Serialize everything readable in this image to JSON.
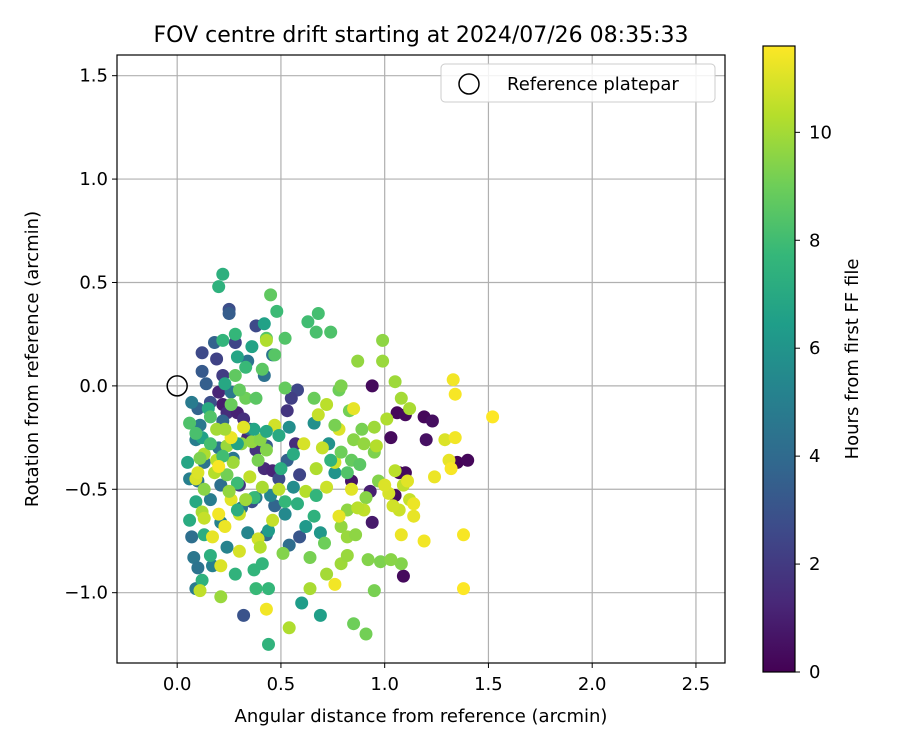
{
  "chart_data": {
    "type": "scatter",
    "title": "FOV centre drift starting at 2024/07/26 08:35:33",
    "xlabel": "Angular distance from reference (arcmin)",
    "ylabel": "Rotation from reference (arcmin)",
    "xlim": [
      -0.29,
      2.64
    ],
    "ylim": [
      -1.34,
      1.6
    ],
    "x_ticks": [
      "0.0",
      "0.5",
      "1.0",
      "1.5",
      "2.0",
      "2.5"
    ],
    "x_tick_values": [
      0.0,
      0.5,
      1.0,
      1.5,
      2.0,
      2.5
    ],
    "y_ticks": [
      "−1.0",
      "−0.5",
      "0.0",
      "0.5",
      "1.0",
      "1.5"
    ],
    "y_tick_values": [
      -1.0,
      -0.5,
      0.0,
      0.5,
      1.0,
      1.5
    ],
    "grid": true,
    "legend": {
      "placement": "top-right",
      "label": "Reference platepar"
    },
    "reference_point": {
      "x": 0.0,
      "y": 0.0
    },
    "colorbar": {
      "label": "Hours from first FF file",
      "min": 0,
      "max": 11.6,
      "ticks": [
        "0",
        "2",
        "4",
        "6",
        "8",
        "10"
      ],
      "tick_values": [
        0,
        2,
        4,
        6,
        8,
        10
      ],
      "colormap": "viridis",
      "colors": [
        "#440154",
        "#482878",
        "#3e4989",
        "#31688e",
        "#26828e",
        "#1f9e89",
        "#35b779",
        "#6ece58",
        "#b5de2b",
        "#fde725"
      ]
    },
    "points": [
      [
        0.94,
        0.0,
        0.3
      ],
      [
        1.06,
        -0.13,
        0.2
      ],
      [
        1.1,
        -0.14,
        0.3
      ],
      [
        1.19,
        -0.15,
        0.2
      ],
      [
        1.23,
        -0.17,
        0.4
      ],
      [
        1.2,
        -0.26,
        0.5
      ],
      [
        1.07,
        -0.42,
        0.2
      ],
      [
        1.1,
        -0.42,
        0.3
      ],
      [
        1.35,
        -0.37,
        0.1
      ],
      [
        1.4,
        -0.36,
        0.2
      ],
      [
        1.03,
        -0.25,
        0.3
      ],
      [
        1.05,
        -0.53,
        0.4
      ],
      [
        1.09,
        -0.92,
        0.3
      ],
      [
        0.84,
        -0.46,
        0.6
      ],
      [
        0.94,
        -0.66,
        0.8
      ],
      [
        0.93,
        -0.51,
        1.0
      ],
      [
        0.2,
        -0.03,
        1.2
      ],
      [
        0.22,
        -0.09,
        0.9
      ],
      [
        0.24,
        -0.13,
        1.5
      ],
      [
        0.29,
        -0.13,
        1.1
      ],
      [
        0.32,
        -0.16,
        1.6
      ],
      [
        0.34,
        -0.25,
        1.3
      ],
      [
        0.38,
        -0.31,
        1.7
      ],
      [
        0.42,
        -0.4,
        1.4
      ],
      [
        0.46,
        -0.41,
        1.2
      ],
      [
        0.3,
        -0.48,
        1.9
      ],
      [
        0.53,
        -0.12,
        1.8
      ],
      [
        0.57,
        -0.28,
        1.5
      ],
      [
        0.22,
        0.05,
        2.1
      ],
      [
        0.19,
        0.13,
        2.3
      ],
      [
        0.12,
        0.16,
        2.6
      ],
      [
        0.28,
        0.21,
        2.4
      ],
      [
        0.25,
        0.37,
        2.8
      ],
      [
        0.38,
        0.29,
        2.6
      ],
      [
        0.58,
        -0.02,
        2.5
      ],
      [
        0.55,
        -0.06,
        2.2
      ],
      [
        0.16,
        -0.08,
        2.8
      ],
      [
        0.49,
        -0.45,
        2.7
      ],
      [
        0.59,
        -0.43,
        2.4
      ],
      [
        0.36,
        -0.56,
        2.9
      ],
      [
        0.32,
        -1.11,
        3.0
      ],
      [
        0.59,
        -0.73,
        3.1
      ],
      [
        0.12,
        0.07,
        3.3
      ],
      [
        0.25,
        0.35,
        3.4
      ],
      [
        0.18,
        0.21,
        3.6
      ],
      [
        0.14,
        0.01,
        3.5
      ],
      [
        0.1,
        -0.11,
        3.7
      ],
      [
        0.22,
        -0.17,
        3.8
      ],
      [
        0.35,
        -0.21,
        3.9
      ],
      [
        0.43,
        -0.29,
        3.4
      ],
      [
        0.53,
        -0.36,
        3.6
      ],
      [
        0.47,
        -0.58,
        3.8
      ],
      [
        0.43,
        -0.72,
        4.0
      ],
      [
        0.54,
        -0.77,
        4.1
      ],
      [
        0.21,
        -0.48,
        4.2
      ],
      [
        0.42,
        0.05,
        4.3
      ],
      [
        0.34,
        0.12,
        4.4
      ],
      [
        0.46,
        0.15,
        4.5
      ],
      [
        0.26,
        -0.03,
        4.6
      ],
      [
        0.11,
        -0.19,
        4.7
      ],
      [
        0.07,
        -0.08,
        4.8
      ],
      [
        0.09,
        -0.26,
        4.9
      ],
      [
        0.06,
        -0.45,
        5.0
      ],
      [
        0.1,
        -0.46,
        4.3
      ],
      [
        0.13,
        -0.37,
        4.4
      ],
      [
        0.2,
        -0.3,
        4.5
      ],
      [
        0.27,
        -0.35,
        4.6
      ],
      [
        0.31,
        -0.59,
        4.7
      ],
      [
        0.38,
        -0.54,
        4.8
      ],
      [
        0.16,
        -0.55,
        4.9
      ],
      [
        0.07,
        -0.73,
        4.2
      ],
      [
        0.08,
        -0.83,
        4.6
      ],
      [
        0.1,
        -0.88,
        4.4
      ],
      [
        0.09,
        -0.98,
        4.8
      ],
      [
        0.17,
        -0.87,
        5.0
      ],
      [
        0.21,
        -0.66,
        5.1
      ],
      [
        0.24,
        -0.78,
        5.2
      ],
      [
        0.34,
        -0.71,
        5.3
      ],
      [
        0.45,
        -0.53,
        5.4
      ],
      [
        0.52,
        -0.62,
        5.5
      ],
      [
        0.56,
        -0.49,
        5.6
      ],
      [
        0.54,
        -0.2,
        5.7
      ],
      [
        0.66,
        -0.18,
        5.8
      ],
      [
        0.73,
        -0.28,
        5.9
      ],
      [
        0.76,
        -0.42,
        6.0
      ],
      [
        0.69,
        -0.71,
        6.1
      ],
      [
        0.62,
        -0.68,
        6.2
      ],
      [
        0.44,
        -0.7,
        6.3
      ],
      [
        0.6,
        -1.05,
        6.4
      ],
      [
        0.69,
        -1.11,
        6.5
      ],
      [
        0.42,
        0.3,
        6.6
      ],
      [
        0.36,
        0.19,
        6.7
      ],
      [
        0.29,
        0.14,
        6.8
      ],
      [
        0.23,
        0.01,
        6.9
      ],
      [
        0.15,
        -0.11,
        7.0
      ],
      [
        0.12,
        -0.25,
        6.6
      ],
      [
        0.05,
        -0.37,
        6.8
      ],
      [
        0.09,
        -0.56,
        7.0
      ],
      [
        0.06,
        -0.65,
        7.1
      ],
      [
        0.13,
        -0.72,
        7.2
      ],
      [
        0.16,
        -0.82,
        7.3
      ],
      [
        0.12,
        -0.94,
        7.4
      ],
      [
        0.28,
        -0.91,
        7.5
      ],
      [
        0.37,
        -0.89,
        7.6
      ],
      [
        0.44,
        -0.98,
        7.7
      ],
      [
        0.44,
        -1.25,
        7.5
      ],
      [
        0.22,
        0.54,
        7.3
      ],
      [
        0.2,
        0.48,
        7.4
      ],
      [
        0.22,
        0.22,
        7.6
      ],
      [
        0.28,
        0.25,
        7.7
      ],
      [
        0.33,
        0.09,
        7.8
      ],
      [
        0.48,
        0.36,
        7.9
      ],
      [
        0.63,
        0.31,
        8.0
      ],
      [
        0.68,
        0.35,
        8.1
      ],
      [
        0.67,
        0.26,
        8.2
      ],
      [
        0.74,
        0.26,
        8.3
      ],
      [
        0.52,
        0.23,
        8.4
      ],
      [
        0.47,
        0.15,
        8.5
      ],
      [
        0.41,
        0.08,
        8.6
      ],
      [
        0.28,
        0.05,
        8.7
      ],
      [
        0.52,
        -0.01,
        8.8
      ],
      [
        0.66,
        -0.06,
        8.9
      ],
      [
        0.78,
        -0.02,
        9.0
      ],
      [
        0.83,
        -0.12,
        9.1
      ],
      [
        0.89,
        -0.21,
        9.2
      ],
      [
        0.95,
        -0.32,
        9.3
      ],
      [
        0.97,
        -0.46,
        9.4
      ],
      [
        0.91,
        -0.54,
        9.5
      ],
      [
        0.82,
        -0.6,
        9.6
      ],
      [
        0.79,
        -0.68,
        9.7
      ],
      [
        0.82,
        -0.73,
        9.8
      ],
      [
        0.79,
        -0.86,
        9.9
      ],
      [
        0.72,
        -0.91,
        10.0
      ],
      [
        0.64,
        -0.98,
        10.1
      ],
      [
        0.54,
        -1.17,
        10.2
      ],
      [
        0.85,
        -1.15,
        9.0
      ],
      [
        0.91,
        -1.2,
        9.1
      ],
      [
        0.95,
        -0.99,
        9.2
      ],
      [
        0.98,
        -0.85,
        9.3
      ],
      [
        1.08,
        -0.86,
        9.4
      ],
      [
        1.03,
        -0.84,
        9.5
      ],
      [
        0.99,
        0.22,
        9.6
      ],
      [
        0.87,
        0.12,
        9.7
      ],
      [
        0.99,
        0.12,
        9.8
      ],
      [
        1.05,
        0.02,
        9.9
      ],
      [
        1.08,
        -0.06,
        10.0
      ],
      [
        1.12,
        -0.11,
        10.1
      ],
      [
        1.01,
        -0.16,
        10.2
      ],
      [
        0.96,
        -0.29,
        10.3
      ],
      [
        1.05,
        -0.41,
        10.4
      ],
      [
        1.09,
        -0.48,
        10.5
      ],
      [
        1.12,
        -0.55,
        10.6
      ],
      [
        1.07,
        -0.6,
        10.7
      ],
      [
        1.04,
        -0.58,
        10.8
      ],
      [
        1.02,
        -0.52,
        10.9
      ],
      [
        1.0,
        -0.48,
        11.0
      ],
      [
        1.11,
        -0.46,
        11.1
      ],
      [
        1.14,
        -0.63,
        11.2
      ],
      [
        1.14,
        -0.57,
        11.3
      ],
      [
        1.33,
        0.03,
        11.4
      ],
      [
        1.34,
        -0.04,
        11.5
      ],
      [
        1.29,
        -0.26,
        11.0
      ],
      [
        1.31,
        -0.36,
        11.2
      ],
      [
        1.34,
        -0.25,
        11.4
      ],
      [
        1.32,
        -0.4,
        11.5
      ],
      [
        1.24,
        -0.44,
        11.3
      ],
      [
        1.52,
        -0.15,
        11.6
      ],
      [
        1.38,
        -0.72,
        11.5
      ],
      [
        1.38,
        -0.98,
        11.6
      ],
      [
        1.19,
        -0.75,
        11.4
      ],
      [
        1.08,
        -0.72,
        11.3
      ],
      [
        0.84,
        -0.5,
        11.1
      ],
      [
        0.85,
        -0.11,
        11.2
      ],
      [
        0.78,
        -0.21,
        11.0
      ],
      [
        0.76,
        -0.37,
        10.8
      ],
      [
        0.7,
        -0.3,
        10.6
      ],
      [
        0.72,
        -0.49,
        10.7
      ],
      [
        0.78,
        -0.63,
        11.2
      ],
      [
        0.76,
        -0.96,
        11.4
      ],
      [
        0.9,
        -0.6,
        10.5
      ],
      [
        0.62,
        -0.51,
        10.3
      ],
      [
        0.67,
        -0.4,
        10.2
      ],
      [
        0.49,
        -0.5,
        10.4
      ],
      [
        0.46,
        -0.65,
        10.6
      ],
      [
        0.39,
        -0.74,
        10.8
      ],
      [
        0.3,
        -0.8,
        10.9
      ],
      [
        0.21,
        -0.87,
        11.0
      ],
      [
        0.17,
        -0.73,
        11.2
      ],
      [
        0.23,
        -0.68,
        11.3
      ],
      [
        0.2,
        -0.62,
        11.4
      ],
      [
        0.26,
        -0.55,
        11.1
      ],
      [
        0.3,
        -0.62,
        10.7
      ],
      [
        0.35,
        -0.44,
        10.5
      ],
      [
        0.18,
        -0.42,
        10.3
      ],
      [
        0.12,
        -0.61,
        10.1
      ],
      [
        0.09,
        -0.45,
        10.9
      ],
      [
        0.13,
        -0.64,
        10.6
      ],
      [
        0.1,
        -0.42,
        11.0
      ],
      [
        0.13,
        -0.33,
        10.2
      ],
      [
        0.19,
        -0.36,
        10.4
      ],
      [
        0.19,
        -0.21,
        10.0
      ],
      [
        0.24,
        -0.29,
        9.8
      ],
      [
        0.27,
        -0.37,
        9.9
      ],
      [
        0.31,
        -0.28,
        9.6
      ],
      [
        0.36,
        -0.27,
        9.7
      ],
      [
        0.4,
        -0.26,
        9.5
      ],
      [
        0.47,
        -0.19,
        10.8
      ],
      [
        0.43,
        -0.31,
        9.4
      ],
      [
        0.39,
        -0.36,
        9.2
      ],
      [
        0.24,
        -0.43,
        9.1
      ],
      [
        0.33,
        -0.06,
        9.0
      ],
      [
        0.26,
        -0.09,
        8.9
      ],
      [
        0.3,
        -0.02,
        8.8
      ],
      [
        0.38,
        -0.06,
        8.6
      ],
      [
        0.45,
        0.44,
        8.7
      ],
      [
        0.43,
        0.23,
        8.5
      ],
      [
        0.43,
        0.22,
        10.2
      ],
      [
        0.16,
        -0.15,
        8.4
      ],
      [
        0.06,
        -0.18,
        8.3
      ],
      [
        0.09,
        -0.23,
        8.2
      ],
      [
        0.16,
        -0.28,
        8.1
      ],
      [
        0.22,
        -0.34,
        8.0
      ],
      [
        0.29,
        -0.47,
        7.9
      ],
      [
        0.37,
        -0.54,
        7.8
      ],
      [
        0.52,
        -0.56,
        7.7
      ],
      [
        0.67,
        -0.53,
        7.6
      ],
      [
        0.74,
        -0.36,
        7.5
      ],
      [
        0.66,
        -0.63,
        7.4
      ],
      [
        0.58,
        -0.57,
        7.3
      ],
      [
        0.5,
        -0.4,
        7.2
      ],
      [
        0.56,
        -0.33,
        7.1
      ],
      [
        0.49,
        -0.24,
        7.0
      ],
      [
        0.43,
        -0.22,
        6.9
      ],
      [
        0.37,
        -0.21,
        6.8
      ],
      [
        0.29,
        -0.28,
        6.7
      ],
      [
        0.41,
        -0.86,
        7.6
      ],
      [
        0.38,
        -0.98,
        7.8
      ],
      [
        0.29,
        -0.6,
        7.2
      ],
      [
        0.41,
        -0.49,
        10.1
      ],
      [
        0.33,
        -0.55,
        9.9
      ],
      [
        0.25,
        -0.51,
        9.7
      ],
      [
        0.13,
        -0.5,
        9.5
      ],
      [
        0.11,
        -0.35,
        9.3
      ],
      [
        0.2,
        -0.39,
        11.5
      ],
      [
        0.26,
        -0.25,
        11.3
      ],
      [
        0.32,
        -0.2,
        11.1
      ],
      [
        0.23,
        -0.21,
        10.0
      ],
      [
        0.4,
        -0.78,
        10.3
      ],
      [
        0.21,
        -1.02,
        9.8
      ],
      [
        0.11,
        -0.99,
        10.5
      ],
      [
        0.43,
        -1.08,
        11.4
      ],
      [
        0.51,
        -0.81,
        9.4
      ],
      [
        0.64,
        -0.83,
        9.2
      ],
      [
        0.71,
        -0.76,
        9.0
      ],
      [
        0.82,
        -0.82,
        9.8
      ],
      [
        0.86,
        -0.72,
        9.6
      ],
      [
        0.92,
        -0.84,
        9.4
      ],
      [
        0.76,
        -0.19,
        9.2
      ],
      [
        0.79,
        -0.32,
        9.0
      ],
      [
        0.84,
        -0.36,
        8.8
      ],
      [
        0.88,
        -0.38,
        8.6
      ],
      [
        0.82,
        -0.42,
        8.4
      ],
      [
        0.85,
        -0.26,
        9.5
      ],
      [
        0.9,
        -0.28,
        9.7
      ],
      [
        0.95,
        -0.2,
        9.9
      ],
      [
        0.87,
        -0.59,
        10.4
      ],
      [
        0.61,
        -0.28,
        10.9
      ],
      [
        0.68,
        -0.14,
        10.6
      ],
      [
        0.72,
        -0.09,
        10.4
      ],
      [
        0.79,
        0.0,
        9.3
      ]
    ]
  }
}
